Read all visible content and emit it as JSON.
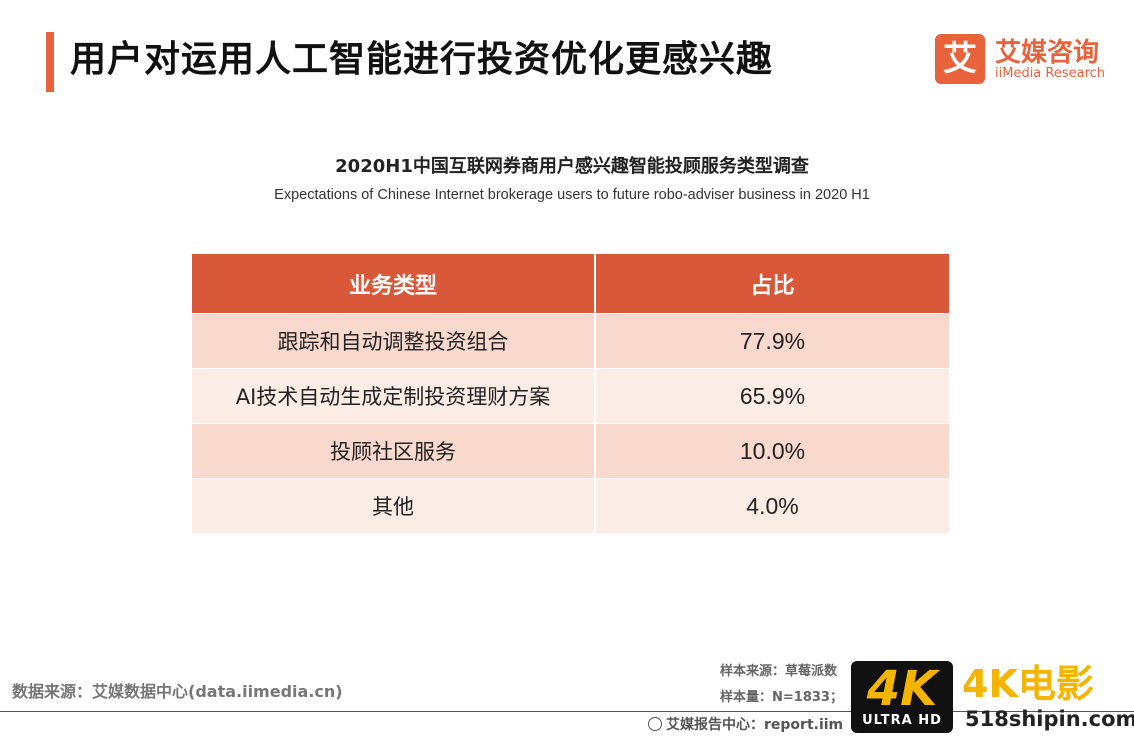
{
  "page": {
    "title": "用户对运用人工智能进行投资优化更感兴趣"
  },
  "logo": {
    "mark": "艾",
    "name_cn": "艾媒咨询",
    "name_en": "iiMedia Research"
  },
  "chart_data": {
    "type": "table",
    "title": "2020H1中国互联网券商用户感兴趣智能投顾服务类型调查",
    "subtitle": "Expectations of Chinese Internet brokerage users to future robo-adviser business in 2020 H1",
    "columns": [
      "业务类型",
      "占比"
    ],
    "rows": [
      [
        "跟踪和自动调整投资组合",
        "77.9%"
      ],
      [
        "AI技术自动生成定制投资理财方案",
        "65.9%"
      ],
      [
        "投顾社区服务",
        "10.0%"
      ],
      [
        "其他",
        "4.0%"
      ]
    ],
    "header_color": "#d9583a",
    "row_colors": [
      "#f9d9cd",
      "#fcece6"
    ]
  },
  "footer": {
    "source": "数据来源：艾媒数据中心(data.iimedia.cn)",
    "sample_source": "样本来源：草莓派数",
    "sample_size": "样本量：N=1833；",
    "report_center": "艾媒报告中心：report.iim"
  },
  "watermark": {
    "badge_main": "4K",
    "badge_sub": "ULTRA HD",
    "brand": "4K电影",
    "url": "518shipin.com"
  },
  "colors": {
    "accent": "#e8623b",
    "watermark_gold": "#f4b400"
  }
}
